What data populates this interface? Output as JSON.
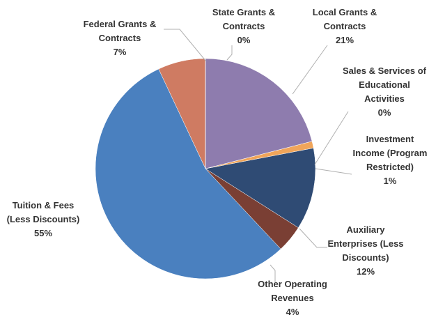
{
  "chart_data": {
    "type": "pie",
    "categories": [
      "State Grants & Contracts",
      "Local Grants & Contracts",
      "Sales & Services of Educational Activities",
      "Investment Income (Program Restricted)",
      "Auxiliary Enterprises (Less Discounts)",
      "Other Operating Revenues",
      "Tuition & Fees (Less Discounts)",
      "Federal Grants & Contracts"
    ],
    "values": [
      0,
      21,
      0,
      1,
      12,
      4,
      55,
      7
    ],
    "value_labels": [
      "0%",
      "21%",
      "0%",
      "1%",
      "12%",
      "4%",
      "55%",
      "7%"
    ],
    "colors": [
      "#d9a0a0",
      "#8e7cae",
      "#7fb3d9",
      "#f0a55a",
      "#2f4b74",
      "#7a3f34",
      "#4a80bf",
      "#cf7b62"
    ]
  }
}
